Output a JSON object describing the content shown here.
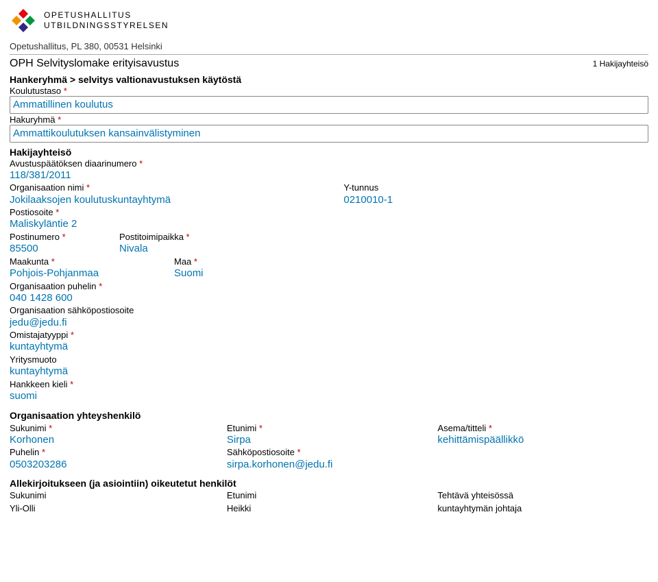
{
  "header": {
    "org_line1": "OPETUSHALLITUS",
    "org_line2": "UTBILDNINGSSTYRELSEN",
    "address": "Opetushallitus, PL 380, 00531 Helsinki",
    "form_title": "OPH Selvityslomake erityisavustus",
    "page_indicator": "1 Hakijayhteisö",
    "logo_colors": {
      "tl": "#e30613",
      "tr": "#009640",
      "bl": "#f39200",
      "br": "#312783"
    }
  },
  "breadcrumb": "Hankeryhmä > selvitys valtionavustuksen käytöstä",
  "koulutustaso": {
    "label": "Koulutustaso *",
    "value": "Ammatillinen koulutus"
  },
  "hakuryhma": {
    "label": "Hakuryhmä *",
    "value": "Ammattikoulutuksen kansainvälistyminen"
  },
  "hakijayhteiso_heading": "Hakijayhteisö",
  "diaari": {
    "label": "Avustuspäätöksen diaarinumero *",
    "value": "118/381/2011"
  },
  "org_nimi": {
    "label": "Organisaation nimi *",
    "value": "Jokilaaksojen koulutuskuntayhtymä"
  },
  "ytunnus": {
    "label": "Y-tunnus",
    "value": "0210010-1"
  },
  "postiosoite": {
    "label": "Postiosoite *",
    "value": "Maliskyläntie 2"
  },
  "postinumero": {
    "label": "Postinumero *",
    "value": "85500"
  },
  "postitoimi": {
    "label": "Postitoimipaikka *",
    "value": "Nivala"
  },
  "maakunta": {
    "label": "Maakunta *",
    "value": "Pohjois-Pohjanmaa"
  },
  "maa": {
    "label": "Maa *",
    "value": "Suomi"
  },
  "org_puhelin": {
    "label": "Organisaation puhelin *",
    "value": "040 1428 600"
  },
  "org_email": {
    "label": "Organisaation sähköpostiosoite",
    "value": "jedu@jedu.fi"
  },
  "omistaja": {
    "label": "Omistajatyyppi *",
    "value": "kuntayhtymä"
  },
  "yritysmuoto": {
    "label": "Yritysmuoto",
    "value": "kuntayhtymä"
  },
  "hankkeen_kieli": {
    "label": "Hankkeen kieli *",
    "value": "suomi"
  },
  "contact_heading": "Organisaation yhteyshenkilö",
  "sukunimi": {
    "label": "Sukunimi *",
    "value": "Korhonen"
  },
  "etunimi": {
    "label": "Etunimi *",
    "value": "Sirpa"
  },
  "asema": {
    "label": "Asema/titteli *",
    "value": "kehittämispäällikkö"
  },
  "puhelin": {
    "label": "Puhelin *",
    "value": "0503203286"
  },
  "email": {
    "label": "Sähköpostiosoite *",
    "value": "sirpa.korhonen@jedu.fi"
  },
  "signatories_heading": "Allekirjoitukseen (ja asiointiin) oikeutetut henkilöt",
  "sig_sukunimi": {
    "label": "Sukunimi",
    "value": "Yli-Olli"
  },
  "sig_etunimi": {
    "label": "Etunimi",
    "value": "Heikki"
  },
  "sig_tehtava": {
    "label": "Tehtävä yhteisössä",
    "value": "kuntayhtymän johtaja"
  }
}
